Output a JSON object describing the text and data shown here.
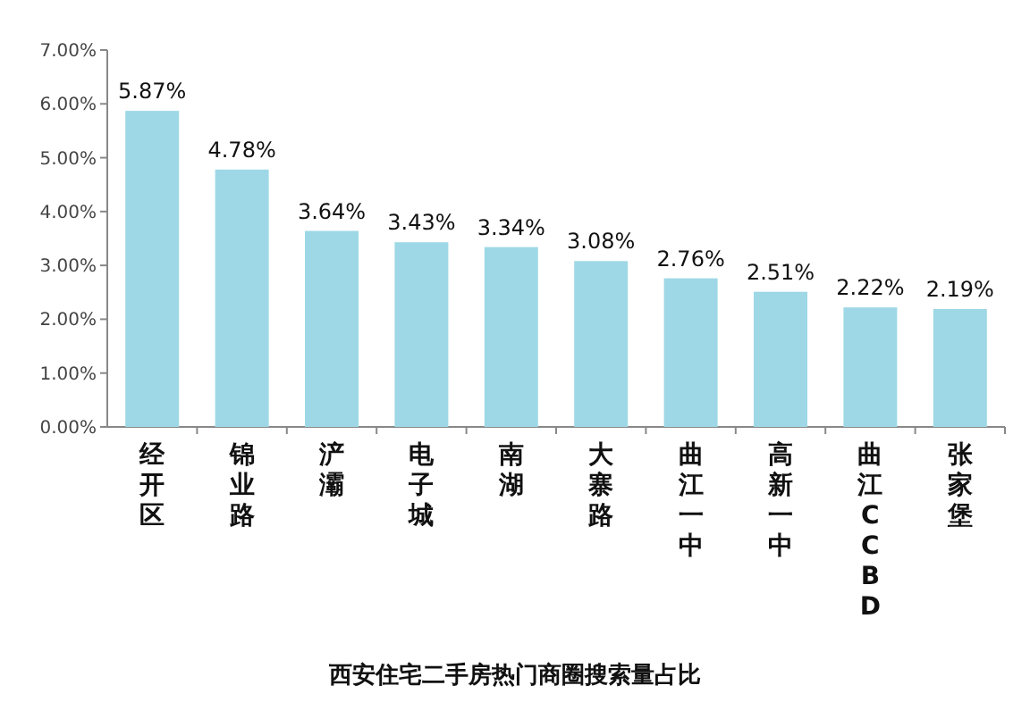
{
  "chart_data": {
    "type": "bar",
    "title": "西安住宅二手房热门商圈搜索量占比",
    "categories": [
      "经开区",
      "锦业路",
      "浐灞",
      "电子城",
      "南湖",
      "大寨路",
      "曲江一中",
      "高新一中",
      "曲江CCBD",
      "张家堡"
    ],
    "values": [
      5.87,
      4.78,
      3.64,
      3.43,
      3.34,
      3.08,
      2.76,
      2.51,
      2.22,
      2.19
    ],
    "value_labels": [
      "5.87%",
      "4.78%",
      "3.64%",
      "3.43%",
      "3.34%",
      "3.08%",
      "2.76%",
      "2.51%",
      "2.22%",
      "2.19%"
    ],
    "color": "#9ed8e6",
    "ylim": [
      0,
      7
    ],
    "yticks": [
      {
        "value": 0,
        "label": "0.00%"
      },
      {
        "value": 1,
        "label": "1.00%"
      },
      {
        "value": 2,
        "label": "2.00%"
      },
      {
        "value": 3,
        "label": "3.00%"
      },
      {
        "value": 4,
        "label": "4.00%"
      },
      {
        "value": 5,
        "label": "5.00%"
      },
      {
        "value": 6,
        "label": "6.00%"
      },
      {
        "value": 7,
        "label": "7.00%"
      }
    ]
  }
}
